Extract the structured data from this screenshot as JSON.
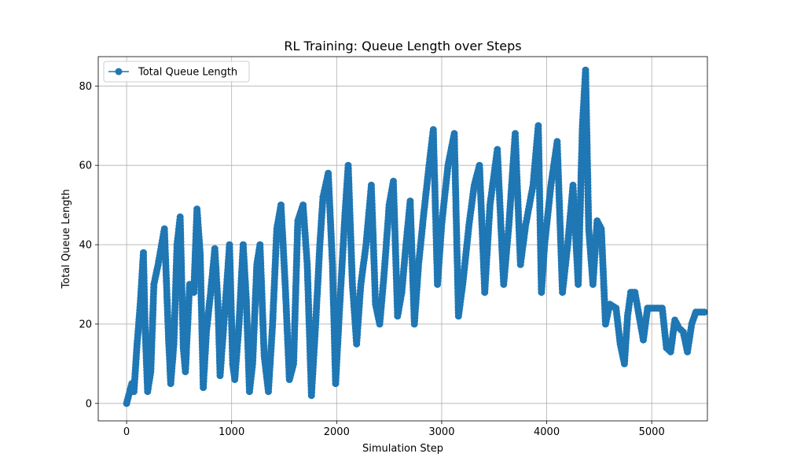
{
  "chart_data": {
    "type": "line",
    "title": "RL Training: Queue Length over Steps",
    "xlabel": "Simulation Step",
    "ylabel": "Total Queue Length",
    "xlim": [
      -270,
      5530
    ],
    "ylim": [
      -4.4,
      87.4
    ],
    "xticks": [
      0,
      1000,
      2000,
      3000,
      4000,
      5000
    ],
    "yticks": [
      0,
      20,
      40,
      60,
      80
    ],
    "grid": true,
    "legend": {
      "placement": "top-left",
      "entries": [
        "Total Queue Length"
      ]
    },
    "marker": "circle",
    "colors": {
      "series": "#1f77b4",
      "grid": "#b0b0b0"
    },
    "series": [
      {
        "name": "Total Queue Length",
        "points": [
          [
            0,
            0
          ],
          [
            50,
            5
          ],
          [
            70,
            3
          ],
          [
            100,
            15
          ],
          [
            130,
            25
          ],
          [
            160,
            38
          ],
          [
            175,
            20
          ],
          [
            200,
            3
          ],
          [
            230,
            8
          ],
          [
            260,
            30
          ],
          [
            300,
            35
          ],
          [
            360,
            44
          ],
          [
            400,
            16
          ],
          [
            420,
            5
          ],
          [
            450,
            15
          ],
          [
            480,
            40
          ],
          [
            510,
            47
          ],
          [
            540,
            14
          ],
          [
            560,
            8
          ],
          [
            600,
            30
          ],
          [
            640,
            28
          ],
          [
            670,
            49
          ],
          [
            700,
            38
          ],
          [
            730,
            4
          ],
          [
            760,
            18
          ],
          [
            800,
            28
          ],
          [
            840,
            39
          ],
          [
            870,
            25
          ],
          [
            890,
            7
          ],
          [
            940,
            25
          ],
          [
            980,
            40
          ],
          [
            1010,
            10
          ],
          [
            1030,
            6
          ],
          [
            1070,
            20
          ],
          [
            1110,
            40
          ],
          [
            1140,
            26
          ],
          [
            1170,
            3
          ],
          [
            1200,
            10
          ],
          [
            1240,
            35
          ],
          [
            1270,
            40
          ],
          [
            1310,
            12
          ],
          [
            1350,
            3
          ],
          [
            1390,
            20
          ],
          [
            1430,
            44
          ],
          [
            1470,
            50
          ],
          [
            1510,
            30
          ],
          [
            1550,
            6
          ],
          [
            1590,
            10
          ],
          [
            1630,
            46
          ],
          [
            1680,
            50
          ],
          [
            1720,
            35
          ],
          [
            1760,
            2
          ],
          [
            1800,
            20
          ],
          [
            1840,
            40
          ],
          [
            1870,
            52
          ],
          [
            1920,
            58
          ],
          [
            1960,
            35
          ],
          [
            1990,
            5
          ],
          [
            2030,
            25
          ],
          [
            2080,
            48
          ],
          [
            2110,
            60
          ],
          [
            2150,
            30
          ],
          [
            2190,
            15
          ],
          [
            2230,
            30
          ],
          [
            2280,
            40
          ],
          [
            2330,
            55
          ],
          [
            2370,
            25
          ],
          [
            2410,
            20
          ],
          [
            2450,
            32
          ],
          [
            2500,
            50
          ],
          [
            2540,
            56
          ],
          [
            2580,
            22
          ],
          [
            2620,
            28
          ],
          [
            2660,
            40
          ],
          [
            2700,
            51
          ],
          [
            2740,
            20
          ],
          [
            2780,
            35
          ],
          [
            2830,
            48
          ],
          [
            2880,
            60
          ],
          [
            2920,
            69
          ],
          [
            2960,
            30
          ],
          [
            3000,
            45
          ],
          [
            3060,
            60
          ],
          [
            3120,
            68
          ],
          [
            3160,
            22
          ],
          [
            3200,
            30
          ],
          [
            3260,
            45
          ],
          [
            3310,
            55
          ],
          [
            3360,
            60
          ],
          [
            3410,
            28
          ],
          [
            3460,
            50
          ],
          [
            3530,
            64
          ],
          [
            3590,
            30
          ],
          [
            3640,
            45
          ],
          [
            3700,
            68
          ],
          [
            3750,
            35
          ],
          [
            3800,
            45
          ],
          [
            3870,
            55
          ],
          [
            3920,
            70
          ],
          [
            3950,
            28
          ],
          [
            3980,
            40
          ],
          [
            4040,
            55
          ],
          [
            4100,
            66
          ],
          [
            4150,
            28
          ],
          [
            4200,
            40
          ],
          [
            4250,
            55
          ],
          [
            4300,
            30
          ],
          [
            4340,
            70
          ],
          [
            4370,
            84
          ],
          [
            4400,
            44
          ],
          [
            4440,
            30
          ],
          [
            4480,
            46
          ],
          [
            4520,
            44
          ],
          [
            4560,
            20
          ],
          [
            4600,
            25
          ],
          [
            4660,
            24
          ],
          [
            4700,
            15
          ],
          [
            4740,
            10
          ],
          [
            4770,
            22
          ],
          [
            4800,
            28
          ],
          [
            4840,
            28
          ],
          [
            4880,
            22
          ],
          [
            4920,
            16
          ],
          [
            4960,
            24
          ],
          [
            5000,
            24
          ],
          [
            5050,
            24
          ],
          [
            5100,
            24
          ],
          [
            5140,
            14
          ],
          [
            5180,
            13
          ],
          [
            5220,
            21
          ],
          [
            5260,
            19
          ],
          [
            5300,
            18
          ],
          [
            5340,
            13
          ],
          [
            5380,
            20
          ],
          [
            5420,
            23
          ],
          [
            5500,
            23
          ]
        ]
      }
    ]
  }
}
